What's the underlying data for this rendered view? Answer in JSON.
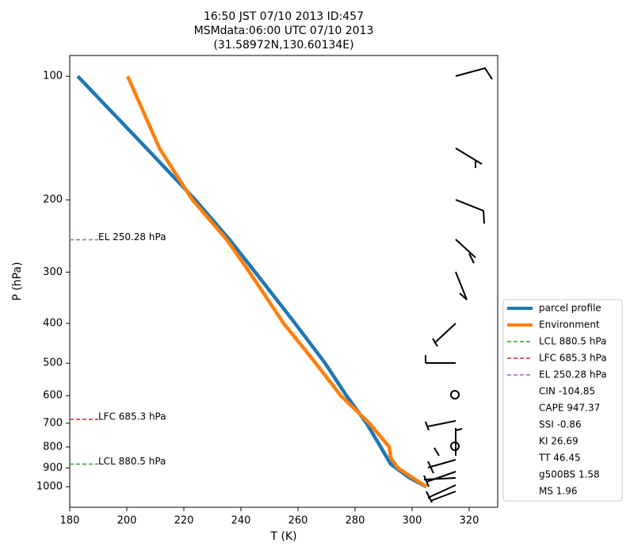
{
  "chart_data": {
    "type": "line",
    "title": [
      "16:50 JST 07/10 2013  ID:457",
      "MSMdata:06:00 UTC 07/10 2013",
      "(31.58972N,130.60134E)"
    ],
    "xlabel": "T (K)",
    "ylabel": "P (hPa)",
    "xlim": [
      180,
      330
    ],
    "ylim": [
      1122,
      89
    ],
    "yscale": "log",
    "xticks": [
      180,
      200,
      220,
      240,
      260,
      280,
      300,
      320
    ],
    "yticks": [
      100,
      200,
      300,
      400,
      500,
      600,
      700,
      800,
      900,
      1000
    ],
    "series": [
      {
        "name": "parcel profile",
        "color": "#1f77b4",
        "pressure": [
          100,
          150,
          200,
          250,
          300,
          400,
          500,
          600,
          700,
          800,
          880.5,
          950,
          1000
        ],
        "values": [
          182.8,
          207,
          224,
          236,
          245,
          259,
          269.5,
          277,
          284,
          289,
          292.5,
          299,
          305
        ]
      },
      {
        "name": "Environment",
        "color": "#ff7f0e",
        "pressure": [
          100,
          150,
          200,
          250,
          300,
          400,
          500,
          600,
          700,
          800,
          850,
          900,
          1000
        ],
        "values": [
          200.3,
          211.5,
          223,
          235,
          243,
          255,
          266.2,
          275,
          285,
          292,
          292.5,
          295,
          305
        ]
      }
    ],
    "levels": [
      {
        "name": "LCL 880.5 hPa",
        "value": 880.5,
        "color": "#2ca02c"
      },
      {
        "name": "LFC 685.3 hPa",
        "value": 685.3,
        "color": "#d62728"
      },
      {
        "name": "EL 250.28 hPa",
        "value": 250.28,
        "color": "#9467bd"
      }
    ],
    "stats": [
      "CIN -104.85",
      "CAPE 947.37",
      "SSI -0.86",
      "KI 26.69",
      "TT 46.45",
      "g500BS 1.58",
      "MS 1.96"
    ]
  }
}
